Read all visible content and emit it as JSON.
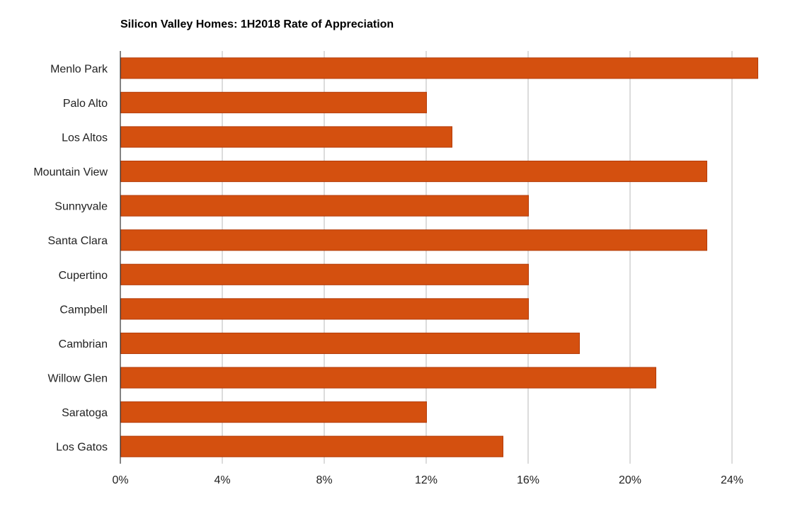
{
  "chart_data": {
    "type": "bar",
    "orientation": "horizontal",
    "title": "Silicon Valley Homes: 1H2018 Rate of Appreciation",
    "xlabel": "",
    "ylabel": "",
    "categories": [
      "Menlo Park",
      "Palo Alto",
      "Los Altos",
      "Mountain View",
      "Sunnyvale",
      "Santa Clara",
      "Cupertino",
      "Campbell",
      "Cambrian",
      "Willow Glen",
      "Saratoga",
      "Los Gatos"
    ],
    "values": [
      25,
      12,
      13,
      23,
      16,
      23,
      16,
      16,
      18,
      21,
      12,
      15
    ],
    "value_unit": "%",
    "xlim": [
      0,
      26
    ],
    "xticks": [
      0,
      4,
      8,
      12,
      16,
      20,
      24
    ],
    "xtick_labels": [
      "0%",
      "4%",
      "8%",
      "12%",
      "16%",
      "20%",
      "24%"
    ],
    "grid": "vertical",
    "legend": "none",
    "bar_color": "#d4500f",
    "bar_border_color": "#b43c0a"
  }
}
